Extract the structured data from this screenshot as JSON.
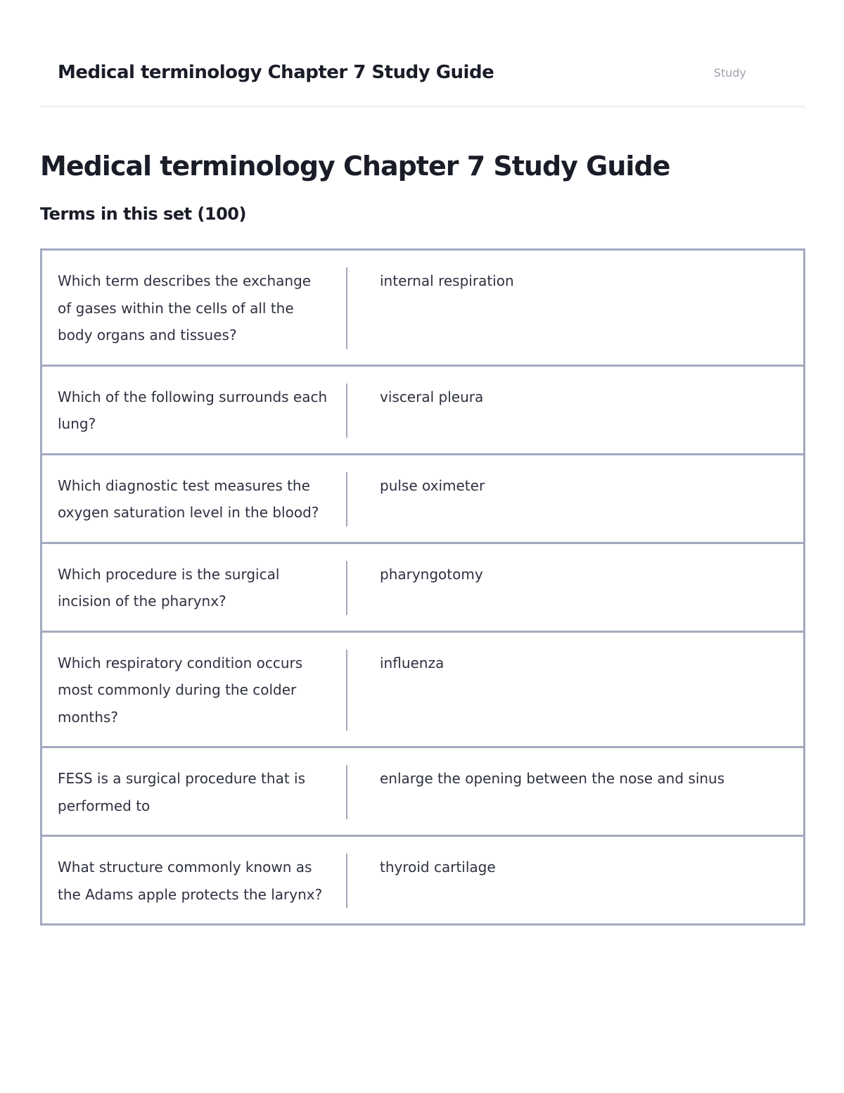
{
  "header": {
    "title": "Medical terminology Chapter 7 Study Guide",
    "study_label": "Study"
  },
  "title": "Medical terminology Chapter 7 Study Guide",
  "terms_heading": "Terms in this set (100)",
  "terms": [
    {
      "q": "Which term describes the exchange of gases within the cells of all the body organs and tissues?",
      "a": "internal respiration"
    },
    {
      "q": "Which of the following surrounds each lung?",
      "a": "visceral pleura"
    },
    {
      "q": "Which diagnostic test measures the oxygen saturation level in the blood?",
      "a": "pulse oximeter"
    },
    {
      "q": "Which procedure is the surgical incision of the pharynx?",
      "a": "pharyngotomy"
    },
    {
      "q": "Which respiratory condition occurs most commonly during the colder months?",
      "a": "influenza"
    },
    {
      "q": "FESS is a surgical procedure that is performed to",
      "a": "enlarge the opening between the nose and sinus"
    },
    {
      "q": "What structure commonly known as the Adams apple protects the larynx?",
      "a": "thyroid cartilage"
    }
  ]
}
